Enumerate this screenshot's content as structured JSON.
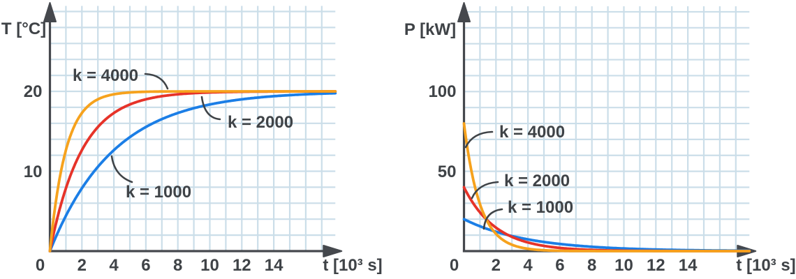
{
  "colors": {
    "grid": "#CBDEE9",
    "axis": "#45484D",
    "text": "#3F4347",
    "background": "#FFFFFF"
  },
  "chart_data": [
    {
      "type": "line",
      "title": "",
      "xlabel": "t [10³ s]",
      "ylabel": "T [°C]",
      "xlim": [
        0,
        18
      ],
      "ylim": [
        0,
        30
      ],
      "x_gridline_step": 1,
      "y_gridline_step": 2,
      "grid": true,
      "x_ticks": [
        0,
        2,
        4,
        6,
        8,
        10,
        12,
        14
      ],
      "y_ticks": [
        10,
        20
      ],
      "asymptote": 20,
      "series": [
        {
          "name": "k = 4000",
          "color": "#F6A21D",
          "model": "rise",
          "amplitude": 20,
          "tau": 1,
          "sample_x": [
            0,
            2,
            4,
            6,
            8,
            10,
            12,
            14,
            16
          ],
          "sample_y": [
            0,
            17.3,
            19.6,
            19.9,
            20,
            20,
            20,
            20,
            20
          ]
        },
        {
          "name": "k = 2000",
          "color": "#E63329",
          "model": "rise",
          "amplitude": 20,
          "tau": 2,
          "sample_x": [
            0,
            2,
            4,
            6,
            8,
            10,
            12,
            14,
            16
          ],
          "sample_y": [
            0,
            12.6,
            17.3,
            19.0,
            19.6,
            19.9,
            19.9,
            20,
            20
          ]
        },
        {
          "name": "k = 1000",
          "color": "#1B7EE6",
          "model": "rise",
          "amplitude": 20,
          "tau": 4,
          "sample_x": [
            0,
            2,
            4,
            6,
            8,
            10,
            12,
            14,
            16
          ],
          "sample_y": [
            0,
            7.9,
            12.6,
            15.5,
            17.3,
            18.4,
            19.0,
            19.4,
            19.6
          ]
        }
      ]
    },
    {
      "type": "line",
      "title": "",
      "xlabel": "t [10³ s]",
      "ylabel": "P [kW]",
      "xlim": [
        0,
        18
      ],
      "ylim": [
        0,
        150
      ],
      "x_gridline_step": 1,
      "y_gridline_step": 10,
      "grid": true,
      "x_ticks": [
        0,
        2,
        4,
        6,
        8,
        10,
        12,
        14
      ],
      "y_ticks": [
        50,
        100
      ],
      "series": [
        {
          "name": "k = 4000",
          "color": "#F6A21D",
          "model": "decay",
          "amplitude": 80,
          "tau": 1,
          "sample_x": [
            0,
            2,
            4,
            6,
            8,
            10,
            12,
            14,
            16
          ],
          "sample_y": [
            80,
            10.8,
            1.5,
            0.2,
            0,
            0,
            0,
            0,
            0
          ]
        },
        {
          "name": "k = 2000",
          "color": "#E63329",
          "model": "decay",
          "amplitude": 40,
          "tau": 2,
          "sample_x": [
            0,
            2,
            4,
            6,
            8,
            10,
            12,
            14,
            16
          ],
          "sample_y": [
            40,
            14.7,
            5.4,
            2.0,
            0.7,
            0.3,
            0.1,
            0,
            0
          ]
        },
        {
          "name": "k = 1000",
          "color": "#1B7EE6",
          "model": "decay",
          "amplitude": 20,
          "tau": 4,
          "sample_x": [
            0,
            2,
            4,
            6,
            8,
            10,
            12,
            14,
            16
          ],
          "sample_y": [
            20,
            12.1,
            7.4,
            4.5,
            2.7,
            1.6,
            1.0,
            0.6,
            0.4
          ]
        }
      ]
    }
  ]
}
